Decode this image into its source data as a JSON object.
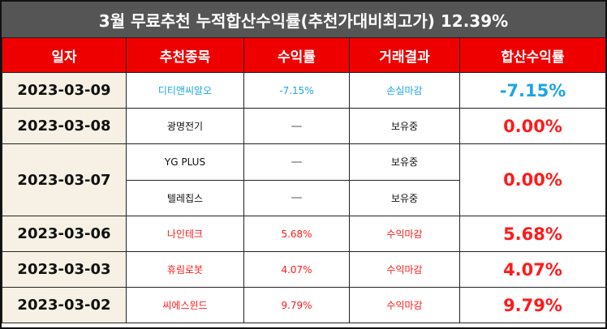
{
  "title": "3월 무료추천 누적합산수익률(추천가대비최고가) 12.39%",
  "headers": [
    "일자",
    "추천종목",
    "수익률",
    "거래결과",
    "합산수익률"
  ],
  "rows": [
    {
      "date": "2023-03-09",
      "stock": "디티앤씨알오",
      "return": "-7.15%",
      "result": "손실마감",
      "total": "-7.15%"
    },
    {
      "date": "2023-03-08",
      "stock": "광명전기",
      "return": "—",
      "result": "보유중",
      "total": "0.00%"
    },
    {
      "date": "2023-03-07",
      "stock": "YG PLUS",
      "return": "—",
      "result": "보유중",
      "total": "0.00%"
    },
    {
      "stock": "텔레칩스",
      "return": "—",
      "result": "보유중"
    },
    {
      "date": "2023-03-06",
      "stock": "나인테크",
      "return": "5.68%",
      "result": "수익마감",
      "total": "5.68%"
    },
    {
      "date": "2023-03-03",
      "stock": "휴림로봇",
      "return": "4.07%",
      "result": "수익마감",
      "total": "4.07%"
    },
    {
      "date": "2023-03-02",
      "stock": "씨에스윈드",
      "return": "9.79%",
      "result": "수익마감",
      "total": "9.79%"
    }
  ],
  "colors": {
    "header_bg": "#ee0000",
    "title_bg": "#555555",
    "loss": "#1aa6e0",
    "profit": "#ff1a1a",
    "date_bg": "#f6f1e4"
  }
}
